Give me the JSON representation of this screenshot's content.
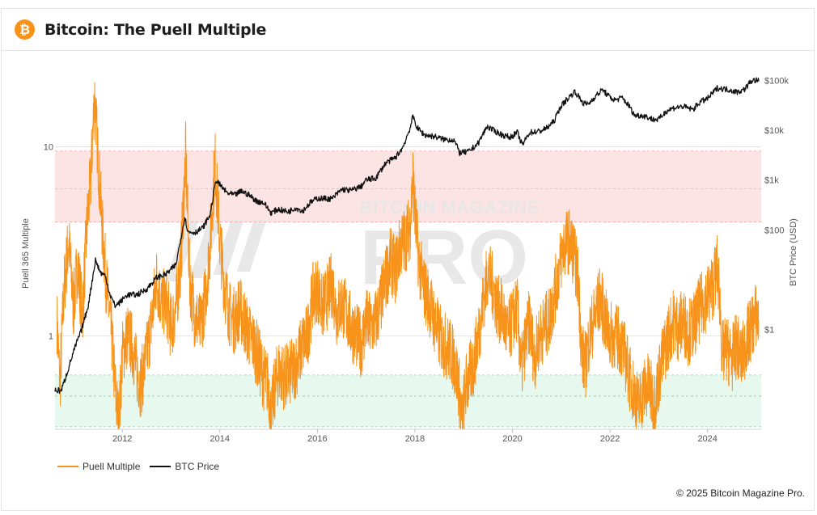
{
  "header": {
    "logo_glyph": "₿",
    "title": "Bitcoin: The Puell Multiple"
  },
  "footer": {
    "copyright": "© 2025 Bitcoin Magazine Pro."
  },
  "watermark": {
    "text": "BITCOIN MAGAZINE",
    "big_text": "PRO"
  },
  "colors": {
    "puell": "#f7931a",
    "price": "#111111",
    "high_band": "#fde4e4",
    "low_band": "#e7f8ef",
    "logo": "#f7931a"
  },
  "legend": [
    {
      "name": "Puell Multiple",
      "color": "#f7931a"
    },
    {
      "name": "BTC Price",
      "color": "#111111"
    }
  ],
  "chart_data": {
    "type": "line",
    "title": "Bitcoin: The Puell Multiple",
    "x_range": [
      2010.62,
      2025.1
    ],
    "x_ticks": [
      "2012",
      "2014",
      "2016",
      "2018",
      "2020",
      "2022",
      "2024"
    ],
    "y_left": {
      "label": "Puell 365 Multiple",
      "scale": "log",
      "range": [
        0.32,
        30
      ],
      "ticks": [
        {
          "value": 10,
          "label": "10"
        },
        {
          "value": 1,
          "label": "1"
        }
      ]
    },
    "y_right": {
      "label": "BTC Price (USD)",
      "scale": "log",
      "range": [
        0.01,
        300000
      ],
      "ticks": [
        {
          "value": 100000,
          "label": "$100k"
        },
        {
          "value": 10000,
          "label": "$10k"
        },
        {
          "value": 1000,
          "label": "$1k"
        },
        {
          "value": 100,
          "label": "$100"
        },
        {
          "value": 1,
          "label": "$1"
        }
      ]
    },
    "bands": [
      {
        "name": "high",
        "from": 4.0,
        "to": 9.5
      },
      {
        "name": "low",
        "from": 0.33,
        "to": 0.62
      }
    ],
    "guide_lines": [
      9.5,
      6.0,
      4.0,
      0.62,
      0.48,
      0.33
    ],
    "grid": "horizontal",
    "legend_position": "bottom-left",
    "series": [
      {
        "name": "Puell Multiple",
        "color": "#f7931a",
        "noise": 0.18,
        "points": [
          [
            2010.66,
            1.2
          ],
          [
            2010.72,
            0.55
          ],
          [
            2010.8,
            1.7
          ],
          [
            2010.9,
            3.2
          ],
          [
            2011.0,
            1.4
          ],
          [
            2011.08,
            2.4
          ],
          [
            2011.18,
            1.3
          ],
          [
            2011.28,
            4.0
          ],
          [
            2011.35,
            6.5
          ],
          [
            2011.43,
            19.0
          ],
          [
            2011.5,
            9.0
          ],
          [
            2011.58,
            4.0
          ],
          [
            2011.68,
            1.8
          ],
          [
            2011.78,
            1.0
          ],
          [
            2011.86,
            0.5
          ],
          [
            2011.93,
            0.34
          ],
          [
            2012.0,
            0.8
          ],
          [
            2012.1,
            1.0
          ],
          [
            2012.2,
            0.9
          ],
          [
            2012.3,
            0.65
          ],
          [
            2012.38,
            0.55
          ],
          [
            2012.5,
            0.8
          ],
          [
            2012.62,
            1.3
          ],
          [
            2012.7,
            2.0
          ],
          [
            2012.8,
            1.5
          ],
          [
            2012.9,
            1.5
          ],
          [
            2013.0,
            1.1
          ],
          [
            2013.1,
            1.4
          ],
          [
            2013.2,
            2.5
          ],
          [
            2013.3,
            9.0
          ],
          [
            2013.38,
            2.0
          ],
          [
            2013.48,
            1.3
          ],
          [
            2013.6,
            1.1
          ],
          [
            2013.7,
            1.6
          ],
          [
            2013.8,
            3.0
          ],
          [
            2013.9,
            8.5
          ],
          [
            2014.0,
            3.2
          ],
          [
            2014.1,
            1.8
          ],
          [
            2014.2,
            1.3
          ],
          [
            2014.3,
            1.2
          ],
          [
            2014.4,
            1.4
          ],
          [
            2014.5,
            1.2
          ],
          [
            2014.6,
            1.0
          ],
          [
            2014.7,
            0.9
          ],
          [
            2014.8,
            0.75
          ],
          [
            2014.9,
            0.6
          ],
          [
            2015.0,
            0.55
          ],
          [
            2015.05,
            0.36
          ],
          [
            2015.12,
            0.52
          ],
          [
            2015.2,
            0.65
          ],
          [
            2015.35,
            0.6
          ],
          [
            2015.5,
            0.65
          ],
          [
            2015.6,
            0.75
          ],
          [
            2015.7,
            0.9
          ],
          [
            2015.8,
            1.0
          ],
          [
            2015.9,
            1.6
          ],
          [
            2016.0,
            1.8
          ],
          [
            2016.1,
            1.4
          ],
          [
            2016.2,
            1.6
          ],
          [
            2016.3,
            1.9
          ],
          [
            2016.4,
            1.3
          ],
          [
            2016.5,
            1.5
          ],
          [
            2016.6,
            1.3
          ],
          [
            2016.7,
            1.1
          ],
          [
            2016.8,
            1.0
          ],
          [
            2016.9,
            0.9
          ],
          [
            2017.0,
            1.2
          ],
          [
            2017.1,
            1.1
          ],
          [
            2017.2,
            1.2
          ],
          [
            2017.3,
            1.5
          ],
          [
            2017.4,
            2.0
          ],
          [
            2017.5,
            2.5
          ],
          [
            2017.6,
            2.2
          ],
          [
            2017.7,
            3.0
          ],
          [
            2017.8,
            3.2
          ],
          [
            2017.9,
            3.8
          ],
          [
            2017.96,
            7.0
          ],
          [
            2018.0,
            4.5
          ],
          [
            2018.08,
            2.5
          ],
          [
            2018.18,
            1.8
          ],
          [
            2018.3,
            1.5
          ],
          [
            2018.4,
            1.2
          ],
          [
            2018.5,
            1.0
          ],
          [
            2018.6,
            0.9
          ],
          [
            2018.7,
            0.85
          ],
          [
            2018.8,
            0.75
          ],
          [
            2018.9,
            0.55
          ],
          [
            2018.96,
            0.34
          ],
          [
            2019.05,
            0.55
          ],
          [
            2019.2,
            0.7
          ],
          [
            2019.3,
            1.0
          ],
          [
            2019.4,
            1.5
          ],
          [
            2019.5,
            2.2
          ],
          [
            2019.6,
            1.8
          ],
          [
            2019.7,
            1.4
          ],
          [
            2019.8,
            1.3
          ],
          [
            2019.9,
            1.0
          ],
          [
            2020.0,
            1.2
          ],
          [
            2020.1,
            1.4
          ],
          [
            2020.18,
            0.65
          ],
          [
            2020.26,
            0.9
          ],
          [
            2020.35,
            1.2
          ],
          [
            2020.45,
            0.75
          ],
          [
            2020.55,
            1.0
          ],
          [
            2020.65,
            1.1
          ],
          [
            2020.75,
            1.2
          ],
          [
            2020.85,
            1.6
          ],
          [
            2020.95,
            2.2
          ],
          [
            2021.05,
            3.0
          ],
          [
            2021.15,
            3.2
          ],
          [
            2021.25,
            2.8
          ],
          [
            2021.35,
            2.0
          ],
          [
            2021.42,
            0.8
          ],
          [
            2021.5,
            0.7
          ],
          [
            2021.58,
            1.0
          ],
          [
            2021.7,
            1.3
          ],
          [
            2021.8,
            1.6
          ],
          [
            2021.9,
            1.2
          ],
          [
            2022.0,
            1.0
          ],
          [
            2022.1,
            1.0
          ],
          [
            2022.2,
            0.95
          ],
          [
            2022.3,
            0.8
          ],
          [
            2022.4,
            0.6
          ],
          [
            2022.5,
            0.5
          ],
          [
            2022.58,
            0.42
          ],
          [
            2022.7,
            0.52
          ],
          [
            2022.8,
            0.55
          ],
          [
            2022.9,
            0.42
          ],
          [
            2023.0,
            0.6
          ],
          [
            2023.1,
            0.8
          ],
          [
            2023.2,
            1.0
          ],
          [
            2023.3,
            1.2
          ],
          [
            2023.4,
            1.1
          ],
          [
            2023.5,
            1.2
          ],
          [
            2023.6,
            1.05
          ],
          [
            2023.7,
            1.1
          ],
          [
            2023.8,
            1.3
          ],
          [
            2023.9,
            1.5
          ],
          [
            2024.0,
            1.6
          ],
          [
            2024.1,
            1.8
          ],
          [
            2024.2,
            2.3
          ],
          [
            2024.25,
            1.6
          ],
          [
            2024.3,
            0.8
          ],
          [
            2024.4,
            0.85
          ],
          [
            2024.5,
            0.75
          ],
          [
            2024.6,
            0.9
          ],
          [
            2024.7,
            0.75
          ],
          [
            2024.8,
            0.95
          ],
          [
            2024.9,
            1.1
          ],
          [
            2025.0,
            1.3
          ],
          [
            2025.05,
            1.2
          ]
        ]
      },
      {
        "name": "BTC Price",
        "color": "#111111",
        "noise": 0.06,
        "points": [
          [
            2010.62,
            0.06
          ],
          [
            2010.75,
            0.06
          ],
          [
            2010.85,
            0.12
          ],
          [
            2010.95,
            0.25
          ],
          [
            2011.05,
            0.5
          ],
          [
            2011.15,
            0.9
          ],
          [
            2011.3,
            3.0
          ],
          [
            2011.45,
            25.0
          ],
          [
            2011.55,
            14.0
          ],
          [
            2011.65,
            12.0
          ],
          [
            2011.75,
            5.0
          ],
          [
            2011.85,
            3.0
          ],
          [
            2011.95,
            3.5
          ],
          [
            2012.1,
            5.0
          ],
          [
            2012.3,
            5.0
          ],
          [
            2012.5,
            6.5
          ],
          [
            2012.7,
            11.0
          ],
          [
            2012.9,
            13.0
          ],
          [
            2013.1,
            20.0
          ],
          [
            2013.28,
            180.0
          ],
          [
            2013.35,
            90.0
          ],
          [
            2013.5,
            90.0
          ],
          [
            2013.65,
            110.0
          ],
          [
            2013.8,
            200.0
          ],
          [
            2013.92,
            1000.0
          ],
          [
            2014.0,
            800.0
          ],
          [
            2014.15,
            550.0
          ],
          [
            2014.3,
            500.0
          ],
          [
            2014.45,
            600.0
          ],
          [
            2014.6,
            500.0
          ],
          [
            2014.75,
            380.0
          ],
          [
            2014.9,
            350.0
          ],
          [
            2015.05,
            220.0
          ],
          [
            2015.2,
            260.0
          ],
          [
            2015.4,
            230.0
          ],
          [
            2015.55,
            280.0
          ],
          [
            2015.7,
            240.0
          ],
          [
            2015.85,
            350.0
          ],
          [
            2016.0,
            430.0
          ],
          [
            2016.3,
            420.0
          ],
          [
            2016.5,
            650.0
          ],
          [
            2016.7,
            620.0
          ],
          [
            2016.9,
            750.0
          ],
          [
            2017.0,
            1000.0
          ],
          [
            2017.2,
            1100.0
          ],
          [
            2017.4,
            2200.0
          ],
          [
            2017.6,
            2800.0
          ],
          [
            2017.75,
            4500.0
          ],
          [
            2017.9,
            11000.0
          ],
          [
            2017.96,
            19000.0
          ],
          [
            2018.05,
            11000.0
          ],
          [
            2018.2,
            8000.0
          ],
          [
            2018.4,
            7500.0
          ],
          [
            2018.6,
            6500.0
          ],
          [
            2018.8,
            6400.0
          ],
          [
            2018.92,
            3500.0
          ],
          [
            2019.1,
            3700.0
          ],
          [
            2019.3,
            5500.0
          ],
          [
            2019.48,
            12000.0
          ],
          [
            2019.6,
            10000.0
          ],
          [
            2019.8,
            8000.0
          ],
          [
            2019.95,
            7200.0
          ],
          [
            2020.1,
            9000.0
          ],
          [
            2020.2,
            5000.0
          ],
          [
            2020.35,
            9000.0
          ],
          [
            2020.55,
            9500.0
          ],
          [
            2020.7,
            11000.0
          ],
          [
            2020.85,
            15000.0
          ],
          [
            2020.98,
            29000.0
          ],
          [
            2021.1,
            40000.0
          ],
          [
            2021.28,
            60000.0
          ],
          [
            2021.45,
            35000.0
          ],
          [
            2021.55,
            33000.0
          ],
          [
            2021.7,
            48000.0
          ],
          [
            2021.85,
            65000.0
          ],
          [
            2021.98,
            47000.0
          ],
          [
            2022.1,
            40000.0
          ],
          [
            2022.25,
            45000.0
          ],
          [
            2022.4,
            30000.0
          ],
          [
            2022.5,
            20000.0
          ],
          [
            2022.7,
            19500.0
          ],
          [
            2022.88,
            16500.0
          ],
          [
            2023.0,
            16500.0
          ],
          [
            2023.15,
            24000.0
          ],
          [
            2023.3,
            28000.0
          ],
          [
            2023.5,
            30000.0
          ],
          [
            2023.7,
            26000.0
          ],
          [
            2023.85,
            37000.0
          ],
          [
            2024.0,
            43000.0
          ],
          [
            2024.2,
            70000.0
          ],
          [
            2024.45,
            65000.0
          ],
          [
            2024.6,
            58000.0
          ],
          [
            2024.75,
            65000.0
          ],
          [
            2024.9,
            98000.0
          ],
          [
            2025.0,
            100000.0
          ],
          [
            2025.05,
            96000.0
          ]
        ]
      }
    ]
  }
}
